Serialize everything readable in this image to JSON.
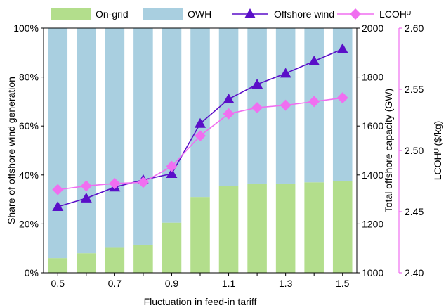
{
  "chart_data": {
    "type": "bar",
    "title": "",
    "xlabel": "Fluctuation in feed-in tariff",
    "ylabel": "Share of offshore wind generation",
    "y2label": "Total offshore capacity (GW)",
    "y3label": "LCOHᵁ ($/kg)",
    "categories": [
      0.5,
      0.6,
      0.7,
      0.8,
      0.9,
      1.0,
      1.1,
      1.2,
      1.3,
      1.4,
      1.5
    ],
    "x_ticks": [
      "0.5",
      "0.7",
      "0.9",
      "1.1",
      "1.3",
      "1.5"
    ],
    "ylim": [
      0,
      100
    ],
    "y_ticks": [
      "0%",
      "20%",
      "40%",
      "60%",
      "80%",
      "100%"
    ],
    "y2lim": [
      1000,
      2000
    ],
    "y2_ticks": [
      "1000",
      "1200",
      "1400",
      "1600",
      "1800",
      "2000"
    ],
    "y3lim": [
      2.4,
      2.6
    ],
    "y3_ticks": [
      "2.40",
      "2.45",
      "2.50",
      "2.55",
      "2.60"
    ],
    "stacked": true,
    "legend_position": "top",
    "series": [
      {
        "name": "On-grid",
        "kind": "bar",
        "axis": "left",
        "color": "#b3de8c",
        "values": [
          6,
          8,
          10.5,
          11.5,
          20.5,
          31,
          35.5,
          36.5,
          36.5,
          37,
          37.5
        ]
      },
      {
        "name": "OWH",
        "kind": "bar",
        "axis": "left",
        "color": "#a9cfe0",
        "values": [
          94,
          92,
          89.5,
          88.5,
          79.5,
          69,
          64.5,
          63.5,
          63.5,
          63,
          62.5
        ]
      },
      {
        "name": "Offshore wind",
        "kind": "line",
        "marker": "triangle",
        "axis": "right1",
        "color": "#5a0fc8",
        "values": [
          1270,
          1305,
          1350,
          1380,
          1405,
          1610,
          1710,
          1770,
          1815,
          1865,
          1915
        ]
      },
      {
        "name": "LCOHᵁ",
        "kind": "line",
        "marker": "diamond",
        "axis": "right2",
        "color": "#f06ef0",
        "values": [
          2.468,
          2.471,
          2.473,
          2.474,
          2.487,
          2.512,
          2.53,
          2.535,
          2.537,
          2.54,
          2.543
        ]
      }
    ]
  }
}
